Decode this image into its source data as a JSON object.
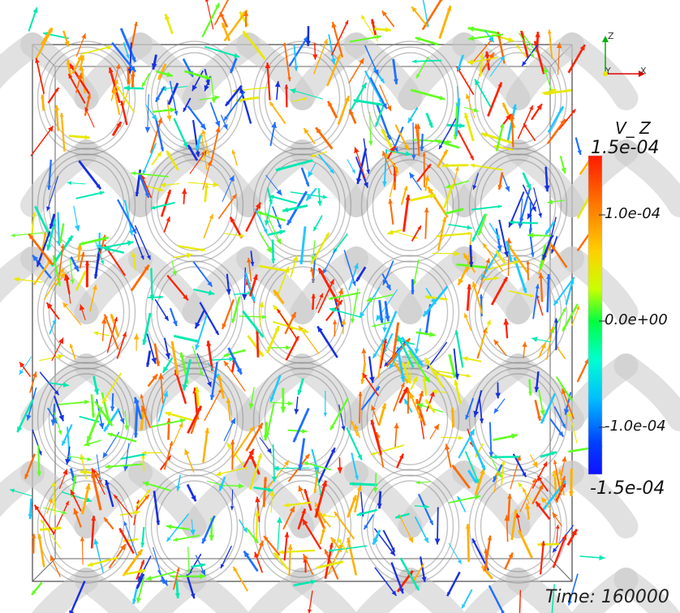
{
  "colorbar": {
    "title": "V_ Z",
    "max_label": "1.5e-04",
    "tick_labels": [
      "1.0e-04",
      "0.0e+00",
      "-1.0e-04"
    ],
    "min_label": "-1.5e-04",
    "colors": [
      "#ff1a00",
      "#ff8000",
      "#ffd000",
      "#c8ff00",
      "#00ff40",
      "#00ffd0",
      "#00c0ff",
      "#0040ff",
      "#1010ff"
    ]
  },
  "axes": {
    "z": "Z",
    "y": "Y",
    "x": "X"
  },
  "time": {
    "label": "Time: 160000"
  },
  "scene": {
    "structure_color": "#c8c8c8",
    "arrow_colors": [
      "#ff2200",
      "#ff6a00",
      "#ffb000",
      "#e8e800",
      "#60ff20",
      "#00e8b0",
      "#20c8ff",
      "#2070ff",
      "#1830e0"
    ]
  }
}
